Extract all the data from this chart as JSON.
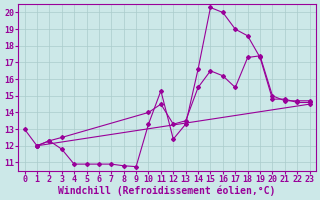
{
  "background_color": "#cce8e8",
  "grid_color": "#aacccc",
  "line_color": "#990099",
  "xlim": [
    -0.5,
    23.5
  ],
  "ylim": [
    10.5,
    20.5
  ],
  "xlabel": "Windchill (Refroidissement éolien,°C)",
  "yticks": [
    11,
    12,
    13,
    14,
    15,
    16,
    17,
    18,
    19,
    20
  ],
  "xticks": [
    0,
    1,
    2,
    3,
    4,
    5,
    6,
    7,
    8,
    9,
    10,
    11,
    12,
    13,
    14,
    15,
    16,
    17,
    18,
    19,
    20,
    21,
    22,
    23
  ],
  "series1_x": [
    0,
    1,
    2,
    3,
    4,
    5,
    6,
    7,
    8,
    9,
    10,
    11,
    12,
    13,
    14,
    15,
    16,
    17,
    18,
    19,
    20,
    21,
    22,
    23
  ],
  "series1_y": [
    13.0,
    12.0,
    12.3,
    11.8,
    10.9,
    10.9,
    10.9,
    10.9,
    10.8,
    10.75,
    13.3,
    15.3,
    12.4,
    13.3,
    16.6,
    20.3,
    20.0,
    19.0,
    18.6,
    17.3,
    14.8,
    14.8,
    14.6,
    14.6
  ],
  "series2_x": [
    1,
    2,
    3,
    10,
    11,
    12,
    13,
    14,
    15,
    16,
    17,
    18,
    19,
    20,
    21,
    22,
    23
  ],
  "series2_y": [
    12.0,
    12.3,
    12.5,
    14.0,
    14.5,
    13.3,
    13.5,
    15.5,
    16.5,
    16.2,
    15.5,
    17.3,
    17.4,
    15.0,
    14.7,
    14.7,
    14.7
  ],
  "series3_x": [
    1,
    23
  ],
  "series3_y": [
    12.0,
    14.5
  ],
  "font_family": "monospace",
  "xlabel_fontsize": 7.0,
  "tick_fontsize": 6.0
}
